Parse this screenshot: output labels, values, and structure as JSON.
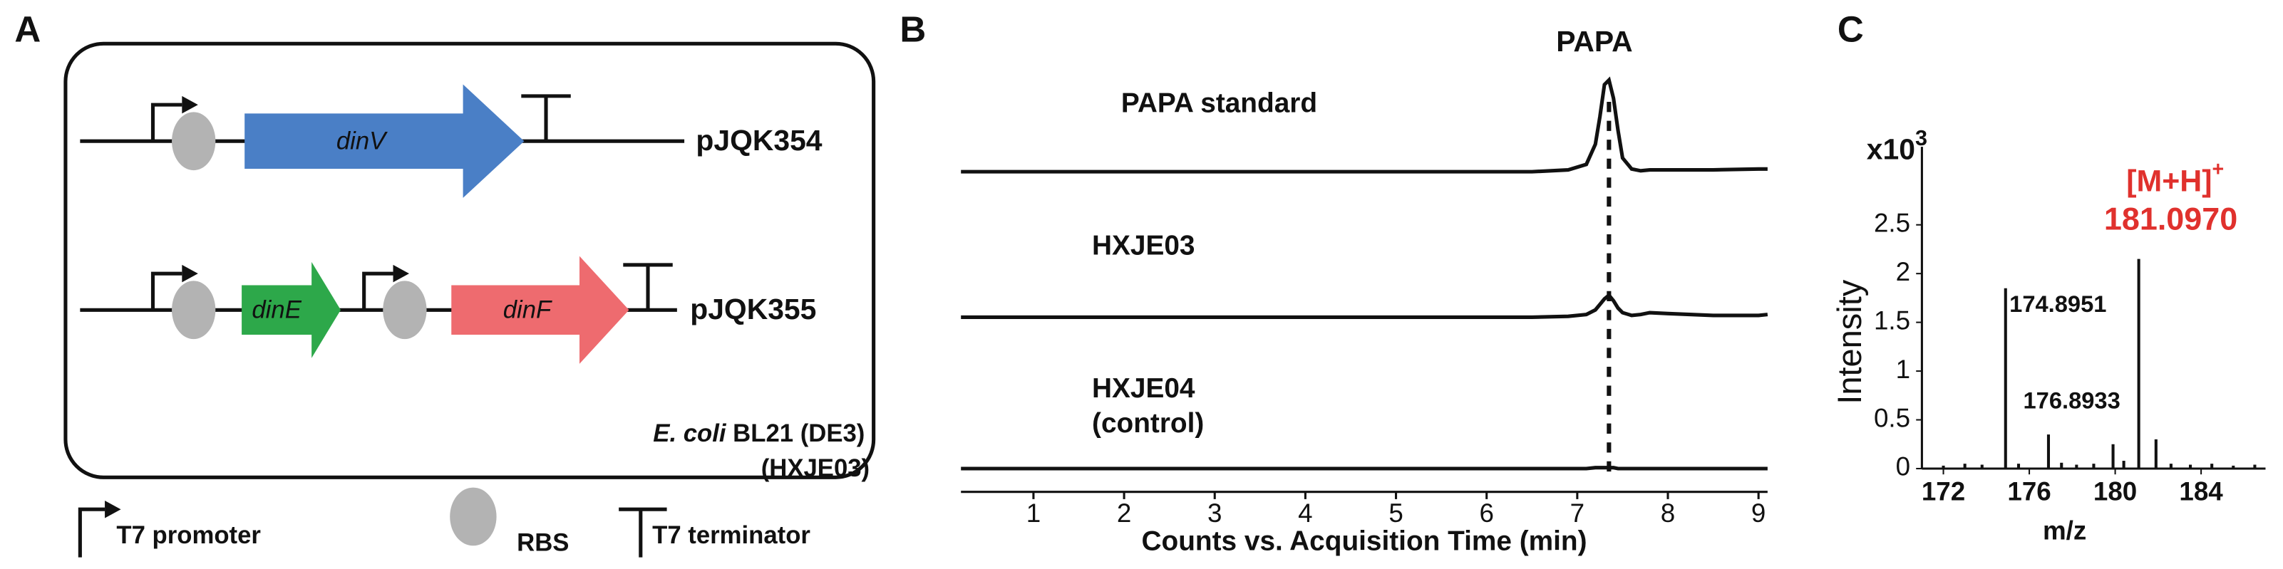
{
  "diagram": {
    "panel_label": "A",
    "constructs": [
      {
        "genes": [
          "dinV"
        ],
        "plasmid": "pJQK354"
      },
      {
        "genes": [
          "dinE",
          "dinF"
        ],
        "plasmid": "pJQK355"
      }
    ],
    "host": {
      "species": "E. coli",
      "strain": "BL21 (DE3)",
      "name": "(HXJE03)"
    },
    "legend": [
      "T7 promoter",
      "RBS",
      "T7 terminator"
    ]
  },
  "chart_data": [
    {
      "type": "line",
      "panel_label": "B",
      "xlabel": "Counts vs. Acquisition Time (min)",
      "xlim": [
        0.2,
        9.1
      ],
      "xticks": [
        1,
        2,
        3,
        4,
        5,
        6,
        7,
        8,
        9
      ],
      "x": [
        0.2,
        0.5,
        1,
        1.5,
        2,
        2.5,
        3,
        3.5,
        4,
        4.5,
        5,
        5.5,
        6,
        6.5,
        6.9,
        7.1,
        7.2,
        7.25,
        7.3,
        7.35,
        7.4,
        7.45,
        7.5,
        7.6,
        7.7,
        7.8,
        8,
        8.5,
        9,
        9.1
      ],
      "series": [
        {
          "name": "PAPA standard",
          "color": "#111111",
          "values": [
            0,
            0,
            0,
            0,
            0,
            0,
            0,
            0,
            0,
            0,
            0,
            0,
            0,
            0,
            2,
            8,
            30,
            60,
            95,
            100,
            80,
            45,
            15,
            3,
            1,
            2,
            2,
            2,
            3,
            3
          ]
        },
        {
          "name": "HXJE03",
          "color": "#111111",
          "values": [
            0,
            0,
            0,
            0,
            0,
            0,
            0,
            0,
            0,
            0,
            0,
            0,
            0,
            0,
            1,
            3,
            8,
            14,
            20,
            24,
            18,
            10,
            5,
            2,
            3,
            5,
            4,
            2,
            2,
            3
          ]
        },
        {
          "name": "HXJE04",
          "note": "(control)",
          "color": "#111111",
          "values": [
            0,
            0,
            0,
            0,
            0,
            0,
            0,
            0,
            0,
            0,
            0,
            0,
            0,
            0,
            0,
            0,
            1,
            1,
            1,
            1,
            1,
            0,
            0,
            0,
            0,
            0,
            0,
            0,
            0,
            0
          ]
        }
      ],
      "annotation": {
        "text": "PAPA",
        "x": 7.35
      }
    },
    {
      "type": "spectrum",
      "panel_label": "C",
      "xlabel": "m/z",
      "ylabel": "Intensity",
      "y_multiplier": "x10",
      "y_multiplier_exp": "3",
      "xlim": [
        171,
        187
      ],
      "ylim": [
        0,
        3.3
      ],
      "xticks": [
        172,
        176,
        180,
        184
      ],
      "yticks": [
        0,
        0.5,
        1,
        1.5,
        2,
        2.5
      ],
      "series": [
        {
          "color": "#111111",
          "x": [
            172,
            173,
            173.8,
            174.8951,
            175.5,
            176.8933,
            177.5,
            178.2,
            179.0,
            179.9,
            180.4,
            181.097,
            181.9,
            182.6,
            183.5,
            184.5,
            185.5,
            186.5
          ],
          "values": [
            0.03,
            0.05,
            0.04,
            1.85,
            0.05,
            0.35,
            0.06,
            0.04,
            0.05,
            0.25,
            0.08,
            2.15,
            0.3,
            0.05,
            0.04,
            0.05,
            0.03,
            0.04
          ]
        }
      ],
      "annotations": [
        {
          "text": "174.8951",
          "x": 174.8951,
          "y": 1.85
        },
        {
          "text": "176.8933",
          "x": 176.8933,
          "y": 0.35
        }
      ],
      "ion_label": "[M+H]",
      "ion_charge": "+",
      "main_peak": {
        "text": "181.0970",
        "x": 181.097,
        "y": 2.15,
        "color": "#e0312d"
      }
    }
  ]
}
